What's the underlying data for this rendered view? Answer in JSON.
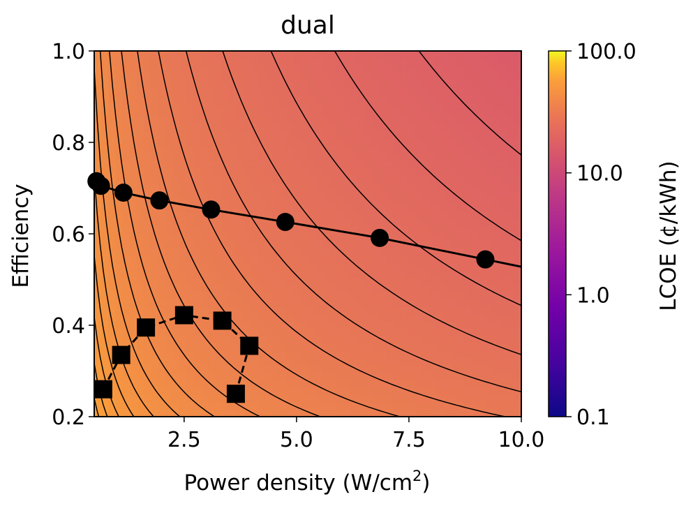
{
  "chart_data": {
    "type": "contour",
    "title": "dual",
    "xlabel": "Power density (W/cm",
    "xlabel_sup": "2",
    "xlabel_tail": ")",
    "ylabel": "Efficiency",
    "xlim": [
      0.5,
      10.0
    ],
    "ylim": [
      0.2,
      1.0
    ],
    "x_ticks": [
      2.5,
      5.0,
      7.5,
      10.0
    ],
    "x_tick_labels": [
      "2.5",
      "5.0",
      "7.5",
      "10.0"
    ],
    "y_ticks": [
      0.2,
      0.4,
      0.6,
      0.8,
      1.0
    ],
    "y_tick_labels": [
      "0.2",
      "0.4",
      "0.6",
      "0.8",
      "1.0"
    ],
    "colormap": "plasma",
    "colorbar": {
      "label": "LCOE (¢/kWh)",
      "scale": "log",
      "range": [
        0.1,
        100.0
      ],
      "ticks": [
        0.1,
        1.0,
        10.0,
        100.0
      ],
      "tick_labels": [
        "0.1",
        "1.0",
        "10.0",
        "100.0"
      ]
    },
    "series": [
      {
        "marker": "circle",
        "linestyle": "solid",
        "x": [
          0.55,
          0.65,
          1.15,
          1.95,
          3.1,
          4.75,
          6.85,
          9.2
        ],
        "y": [
          0.715,
          0.705,
          0.69,
          0.673,
          0.653,
          0.626,
          0.591,
          0.544
        ]
      },
      {
        "marker": "square",
        "linestyle": "dashed",
        "x": [
          0.7,
          1.1,
          1.65,
          2.5,
          3.35,
          3.95,
          3.65
        ],
        "y": [
          0.26,
          0.335,
          0.395,
          0.422,
          0.41,
          0.355,
          0.25
        ]
      }
    ],
    "colors": {
      "low_lcoe": "#da5a6a",
      "high_lcoe": "#fba238",
      "contour_line": "#000000"
    }
  }
}
